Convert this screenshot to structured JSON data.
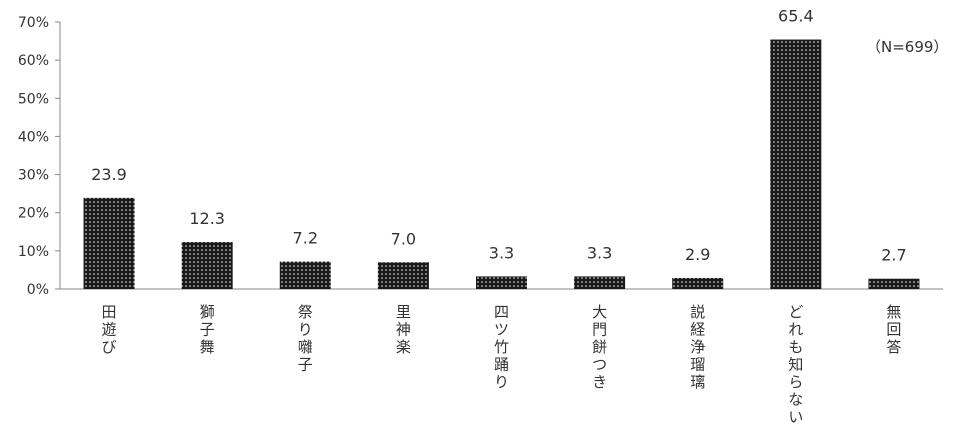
{
  "chart_data": {
    "type": "bar",
    "categories": [
      "田遊び",
      "獅子舞",
      "祭り囃子",
      "里神楽",
      "四ツ竹踊り",
      "大門餅つき",
      "説経浄瑠璃",
      "どれも知らない",
      "無回答"
    ],
    "values": [
      23.9,
      12.3,
      7.2,
      7.0,
      3.3,
      3.3,
      2.9,
      65.4,
      2.7
    ],
    "data_labels": [
      "23.9",
      "12.3",
      "7.2",
      "7.0",
      "3.3",
      "3.3",
      "2.9",
      "65.4",
      "2.7"
    ],
    "ylim": [
      0,
      70
    ],
    "yticks": [
      0,
      10,
      20,
      30,
      40,
      50,
      60,
      70
    ],
    "ytick_labels": [
      "0%",
      "10%",
      "20%",
      "30%",
      "40%",
      "50%",
      "60%",
      "70%"
    ],
    "title": "",
    "xlabel": "",
    "ylabel": "",
    "grid": false,
    "bar_fill": "dotted-black",
    "bar_color": "#1a1a1a"
  },
  "note": "（N=699）"
}
